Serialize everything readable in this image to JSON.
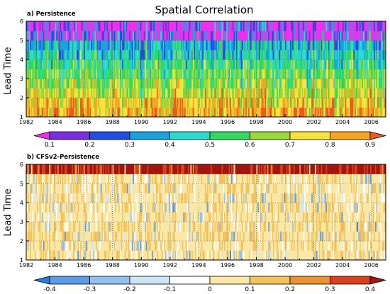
{
  "figure": {
    "title": "Spatial Correlation"
  },
  "chart_data": [
    {
      "type": "heatmap",
      "panel_label": "a) Persistence",
      "ylabel": "Lead Time",
      "x_range": [
        1982,
        2007
      ],
      "x_ticks": [
        "1982",
        "1984",
        "1986",
        "1988",
        "1990",
        "1992",
        "1994",
        "1996",
        "1998",
        "2000",
        "2002",
        "2004",
        "2006"
      ],
      "y_range": [
        1,
        6
      ],
      "y_ticks": [
        "1",
        "2",
        "3",
        "4",
        "5",
        "6"
      ],
      "colorbar": {
        "levels": [
          "0.1",
          "0.2",
          "0.3",
          "0.4",
          "0.5",
          "0.6",
          "0.7",
          "0.8",
          "0.9"
        ],
        "colors": [
          "#ee30ee",
          "#7a2ee0",
          "#1f4fe0",
          "#19a3dd",
          "#2bdccc",
          "#33d85e",
          "#9bd93a",
          "#f7e43a",
          "#f7a524",
          "#ee5a1e"
        ]
      }
    },
    {
      "type": "heatmap",
      "panel_label": "b) CFSv2-Persistence",
      "ylabel": "Lead Time",
      "x_range": [
        1982,
        2007
      ],
      "x_ticks": [
        "1982",
        "1984",
        "1986",
        "1988",
        "1990",
        "1992",
        "1994",
        "1996",
        "1998",
        "2000",
        "2002",
        "2004",
        "2006"
      ],
      "y_range": [
        1,
        6
      ],
      "y_ticks": [
        "1",
        "2",
        "3",
        "4",
        "5",
        "6"
      ],
      "colorbar": {
        "levels": [
          "-0.4",
          "-0.3",
          "-0.2",
          "-0.1",
          "0",
          "0.1",
          "0.2",
          "0.3",
          "0.4"
        ],
        "colors": [
          "#2e7ad8",
          "#5a9ce6",
          "#93c1ef",
          "#cde6f7",
          "#ffffff",
          "#fbe8a6",
          "#f5c35a",
          "#ec9233",
          "#d9401b",
          "#a3150f"
        ]
      }
    }
  ]
}
